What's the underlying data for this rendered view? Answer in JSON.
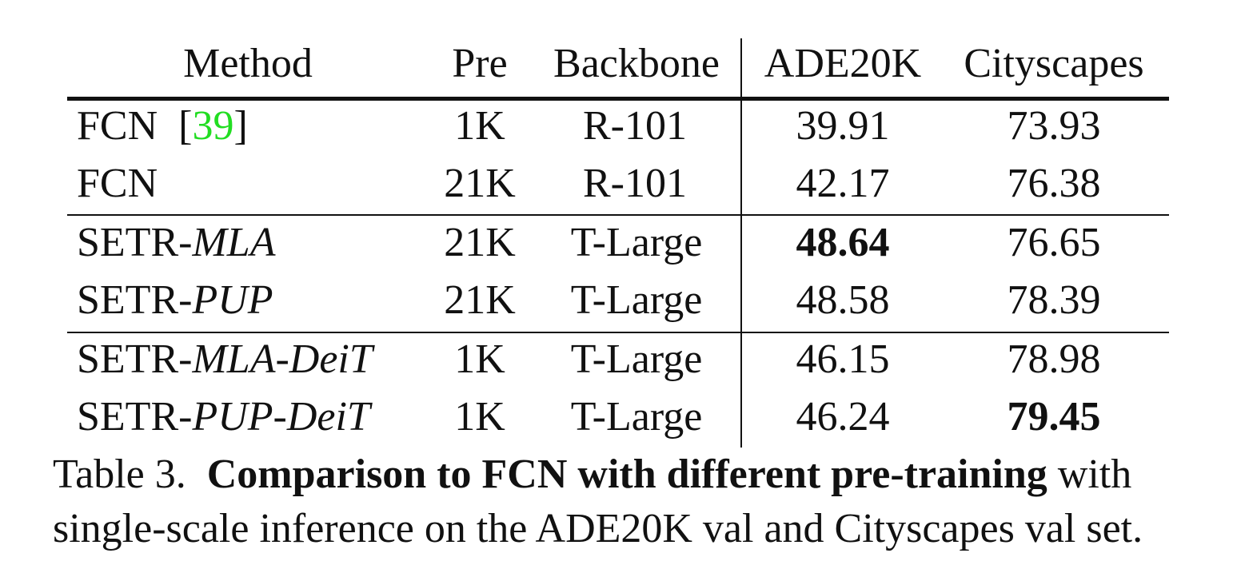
{
  "table": {
    "headers": {
      "method": "Method",
      "pre": "Pre",
      "backbone": "Backbone",
      "ade20k": "ADE20K",
      "cityscapes": "Cityscapes"
    },
    "rows": [
      {
        "method_prefix": "FCN",
        "method_variant": "",
        "citation": "39",
        "pre": "1K",
        "backbone": "R-101",
        "ade20k": "39.91",
        "cityscapes": "73.93"
      },
      {
        "method_prefix": "FCN",
        "method_variant": "",
        "citation": "",
        "pre": "21K",
        "backbone": "R-101",
        "ade20k": "42.17",
        "cityscapes": "76.38"
      },
      {
        "method_prefix": "SETR-",
        "method_variant": "MLA",
        "citation": "",
        "pre": "21K",
        "backbone": "T-Large",
        "ade20k": "48.64",
        "cityscapes": "76.65"
      },
      {
        "method_prefix": "SETR-",
        "method_variant": "PUP",
        "citation": "",
        "pre": "21K",
        "backbone": "T-Large",
        "ade20k": "48.58",
        "cityscapes": "78.39"
      },
      {
        "method_prefix": "SETR-",
        "method_variant": "MLA-DeiT",
        "citation": "",
        "pre": "1K",
        "backbone": "T-Large",
        "ade20k": "46.15",
        "cityscapes": "78.98"
      },
      {
        "method_prefix": "SETR-",
        "method_variant": "PUP-DeiT",
        "citation": "",
        "pre": "1K",
        "backbone": "T-Large",
        "ade20k": "46.24",
        "cityscapes": "79.45"
      }
    ]
  },
  "caption": {
    "label": "Table 3.",
    "bold_text": "Comparison to FCN with different pre-training",
    "rest_text": " with single-scale inference on the ADE20K val and Cityscapes val set."
  },
  "colors": {
    "citation": "#22dd22",
    "text": "#111111"
  }
}
